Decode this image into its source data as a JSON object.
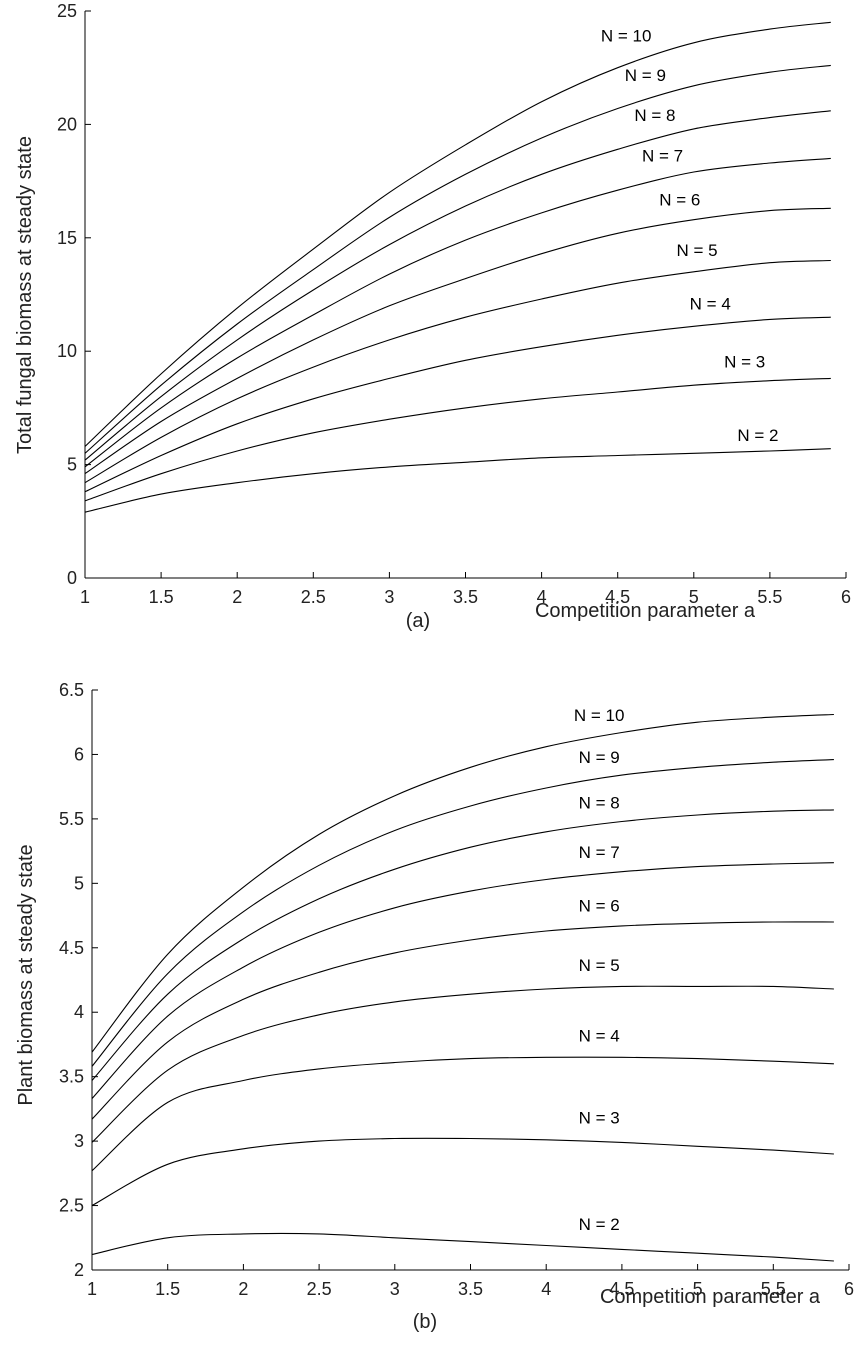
{
  "chart_data": [
    {
      "type": "line",
      "panel_label": "(a)",
      "xlabel": "Competition parameter a",
      "ylabel": "Total fungal biomass at steady state",
      "xlim": [
        1,
        6
      ],
      "ylim": [
        0,
        25
      ],
      "x_ticks": [
        "1",
        "1.5",
        "2",
        "2.5",
        "3",
        "3.5",
        "4",
        "4.5",
        "5",
        "5.5",
        "6"
      ],
      "y_ticks": [
        "0",
        "5",
        "10",
        "15",
        "20",
        "25"
      ],
      "x": [
        1,
        1.5,
        2,
        2.5,
        3,
        3.5,
        4,
        4.5,
        5,
        5.5,
        5.9
      ],
      "series": [
        {
          "name": "N = 2",
          "values": [
            2.9,
            3.7,
            4.2,
            4.6,
            4.9,
            5.1,
            5.3,
            5.4,
            5.5,
            5.6,
            5.7
          ]
        },
        {
          "name": "N = 3",
          "values": [
            3.4,
            4.6,
            5.6,
            6.4,
            7.0,
            7.5,
            7.9,
            8.2,
            8.5,
            8.7,
            8.8
          ]
        },
        {
          "name": "N = 4",
          "values": [
            3.8,
            5.4,
            6.8,
            7.9,
            8.8,
            9.6,
            10.2,
            10.7,
            11.1,
            11.4,
            11.5
          ]
        },
        {
          "name": "N = 5",
          "values": [
            4.2,
            6.2,
            7.9,
            9.3,
            10.5,
            11.5,
            12.3,
            13.0,
            13.5,
            13.9,
            14.0
          ]
        },
        {
          "name": "N = 6",
          "values": [
            4.6,
            6.9,
            8.8,
            10.5,
            12.0,
            13.2,
            14.3,
            15.2,
            15.8,
            16.2,
            16.3
          ]
        },
        {
          "name": "N = 7",
          "values": [
            4.9,
            7.5,
            9.7,
            11.6,
            13.4,
            14.9,
            16.1,
            17.1,
            17.9,
            18.3,
            18.5
          ]
        },
        {
          "name": "N = 8",
          "values": [
            5.2,
            8.0,
            10.5,
            12.7,
            14.7,
            16.4,
            17.8,
            18.9,
            19.8,
            20.3,
            20.6
          ]
        },
        {
          "name": "N = 9",
          "values": [
            5.5,
            8.5,
            11.2,
            13.6,
            15.9,
            17.8,
            19.4,
            20.7,
            21.7,
            22.3,
            22.6
          ]
        },
        {
          "name": "N = 10",
          "values": [
            5.8,
            9.0,
            11.9,
            14.5,
            17.0,
            19.1,
            21.0,
            22.5,
            23.6,
            24.2,
            24.5
          ]
        }
      ]
    },
    {
      "type": "line",
      "panel_label": "(b)",
      "xlabel": "Competition parameter a",
      "ylabel": "Plant biomass at steady state",
      "xlim": [
        1,
        6
      ],
      "ylim": [
        2,
        6.5
      ],
      "x_ticks": [
        "1",
        "1.5",
        "2",
        "2.5",
        "3",
        "3.5",
        "4",
        "4.5",
        "5",
        "5.5",
        "6"
      ],
      "y_ticks": [
        "2",
        "2.5",
        "3",
        "3.5",
        "4",
        "4.5",
        "5",
        "5.5",
        "6",
        "6.5"
      ],
      "x": [
        1,
        1.5,
        2,
        2.5,
        3,
        3.5,
        4,
        4.5,
        5,
        5.5,
        5.9
      ],
      "series": [
        {
          "name": "N = 2",
          "values": [
            2.12,
            2.25,
            2.28,
            2.28,
            2.25,
            2.22,
            2.19,
            2.16,
            2.13,
            2.1,
            2.07
          ]
        },
        {
          "name": "N = 3",
          "values": [
            2.5,
            2.82,
            2.94,
            3.0,
            3.02,
            3.02,
            3.01,
            2.99,
            2.96,
            2.93,
            2.9
          ]
        },
        {
          "name": "N = 4",
          "values": [
            2.77,
            3.3,
            3.47,
            3.56,
            3.61,
            3.64,
            3.65,
            3.65,
            3.64,
            3.62,
            3.6
          ]
        },
        {
          "name": "N = 5",
          "values": [
            2.99,
            3.55,
            3.82,
            3.98,
            4.08,
            4.14,
            4.18,
            4.2,
            4.2,
            4.2,
            4.18
          ]
        },
        {
          "name": "N = 6",
          "values": [
            3.17,
            3.77,
            4.1,
            4.31,
            4.46,
            4.56,
            4.63,
            4.67,
            4.69,
            4.7,
            4.7
          ]
        },
        {
          "name": "N = 7",
          "values": [
            3.33,
            3.97,
            4.35,
            4.62,
            4.81,
            4.94,
            5.03,
            5.09,
            5.13,
            5.15,
            5.16
          ]
        },
        {
          "name": "N = 8",
          "values": [
            3.47,
            4.14,
            4.57,
            4.88,
            5.11,
            5.28,
            5.4,
            5.48,
            5.53,
            5.56,
            5.57
          ]
        },
        {
          "name": "N = 9",
          "values": [
            3.58,
            4.3,
            4.78,
            5.14,
            5.41,
            5.6,
            5.74,
            5.84,
            5.9,
            5.94,
            5.96
          ]
        },
        {
          "name": "N = 10",
          "values": [
            3.69,
            4.45,
            4.97,
            5.38,
            5.68,
            5.9,
            6.06,
            6.17,
            6.25,
            6.29,
            6.31
          ]
        }
      ]
    }
  ]
}
